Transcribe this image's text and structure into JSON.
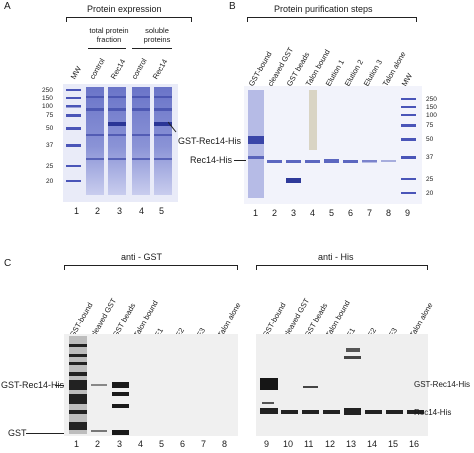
{
  "panels": {
    "A": {
      "letter": "A",
      "title": "Protein expression",
      "group_total": "total protein fraction",
      "group_soluble": "soluble proteins",
      "lanes": [
        "MW",
        "control",
        "Rec14",
        "control",
        "Rec14"
      ],
      "lane_numbers": [
        "1",
        "2",
        "3",
        "4",
        "5"
      ],
      "mw_markers": [
        "250",
        "150",
        "100",
        "75",
        "50",
        "37",
        "25",
        "20"
      ],
      "callout": "GST-Rec14-His"
    },
    "B": {
      "letter": "B",
      "title": "Protein purification steps",
      "lanes": [
        "GST-bound",
        "cleaved GST",
        "GST beads",
        "Talon bound",
        "Elution 1",
        "Elution 2",
        "Elution 3",
        "Talon alone",
        "MW"
      ],
      "lane_numbers": [
        "1",
        "2",
        "3",
        "4",
        "5",
        "6",
        "7",
        "8",
        "9"
      ],
      "mw_markers": [
        "250",
        "150",
        "100",
        "75",
        "50",
        "37",
        "25",
        "20"
      ],
      "callout": "Rec14-His"
    },
    "C": {
      "letter": "C",
      "left_title": "anti - GST",
      "right_title": "anti - His",
      "left_lanes": [
        "GST-bound",
        "cleaved GST",
        "GST beads",
        "Talon bound",
        "E1",
        "E2",
        "E3",
        "Talon alone"
      ],
      "right_lanes": [
        "GST-bound",
        "cleaved GST",
        "GST beads",
        "Talon bound",
        "E1",
        "E2",
        "E3",
        "Talon alone"
      ],
      "left_numbers": [
        "1",
        "2",
        "3",
        "4",
        "5",
        "6",
        "7",
        "8"
      ],
      "right_numbers": [
        "9",
        "10",
        "11",
        "12",
        "13",
        "14",
        "15",
        "16"
      ],
      "left_callouts": [
        "GST-Rec14-His",
        "GST"
      ],
      "right_callouts": [
        "GST-Rec14-His",
        "Rec14-His"
      ]
    }
  }
}
